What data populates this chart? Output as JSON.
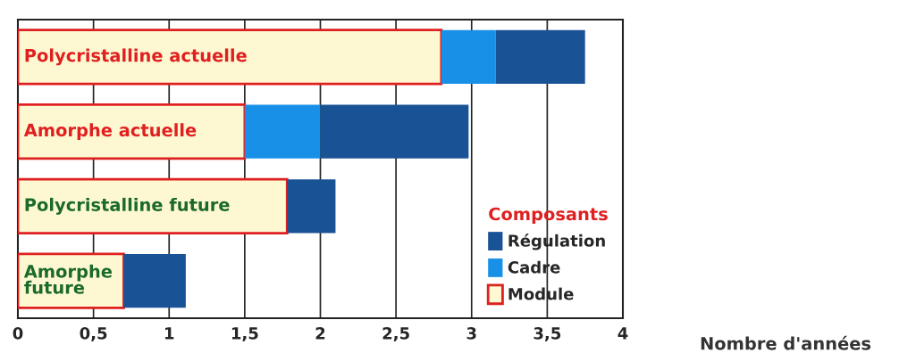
{
  "chart_data": {
    "type": "bar",
    "orientation": "horizontal",
    "stacked": true,
    "xlabel": "Nombre d'années",
    "legend_title": "Composants",
    "legend": "bottom right",
    "categories": [
      "Polycristalline actuelle",
      "Amorphe actuelle",
      "Polycristalline future",
      "Amorphe\nfuture"
    ],
    "series": [
      {
        "name": "Module",
        "color": "#fdf8d2",
        "values": [
          2.8,
          1.5,
          1.78,
          0.7
        ]
      },
      {
        "name": "Cadre",
        "color": "#1890e8",
        "values": [
          0.36,
          0.5,
          0,
          0
        ]
      },
      {
        "name": "Régulation",
        "color": "#1a5296",
        "values": [
          0.59,
          0.98,
          0.32,
          0.41
        ]
      }
    ],
    "xlim": [
      0,
      4
    ],
    "xticks": [
      0,
      {
        "value": 0.5,
        "label": "0,5"
      },
      1,
      {
        "value": 1.5,
        "label": "1,5"
      },
      2,
      {
        "value": 2.5,
        "label": "2,5"
      },
      3,
      {
        "value": 3.5,
        "label": "3,5"
      },
      4
    ],
    "grid": "x"
  }
}
